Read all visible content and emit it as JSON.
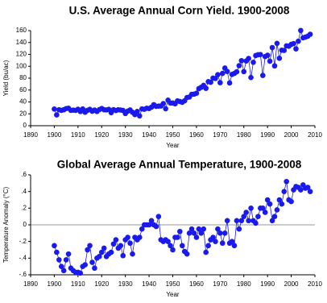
{
  "chart_data": [
    {
      "type": "line",
      "title": "U.S. Average Annual Corn Yield. 1900-2008",
      "x_label": "Year",
      "y_label": "Yield (bu/ac)",
      "color": "#1a1aee",
      "x": [
        1900,
        1901,
        1902,
        1903,
        1904,
        1905,
        1906,
        1907,
        1908,
        1909,
        1910,
        1911,
        1912,
        1913,
        1914,
        1915,
        1916,
        1917,
        1918,
        1919,
        1920,
        1921,
        1922,
        1923,
        1924,
        1925,
        1926,
        1927,
        1928,
        1929,
        1930,
        1931,
        1932,
        1933,
        1934,
        1935,
        1936,
        1937,
        1938,
        1939,
        1940,
        1941,
        1942,
        1943,
        1944,
        1945,
        1946,
        1947,
        1948,
        1949,
        1950,
        1951,
        1952,
        1953,
        1954,
        1955,
        1956,
        1957,
        1958,
        1959,
        1960,
        1961,
        1962,
        1963,
        1964,
        1965,
        1966,
        1967,
        1968,
        1969,
        1970,
        1971,
        1972,
        1973,
        1974,
        1975,
        1976,
        1977,
        1978,
        1979,
        1980,
        1981,
        1982,
        1983,
        1984,
        1985,
        1986,
        1987,
        1988,
        1989,
        1990,
        1991,
        1992,
        1993,
        1994,
        1995,
        1996,
        1997,
        1998,
        1999,
        2000,
        2001,
        2002,
        2003,
        2004,
        2005,
        2006,
        2007,
        2008
      ],
      "values": [
        28.1,
        18.2,
        26.8,
        25.9,
        26.8,
        28.8,
        29.4,
        25.9,
        26.2,
        25.9,
        27.7,
        23.9,
        28.2,
        22.7,
        25.8,
        27.5,
        24.4,
        26.3,
        24.0,
        27.1,
        29.0,
        26.9,
        26.6,
        27.5,
        22.0,
        27.0,
        25.5,
        26.9,
        26.4,
        25.7,
        20.5,
        24.5,
        26.5,
        22.6,
        18.7,
        24.0,
        16.5,
        28.2,
        27.7,
        29.4,
        28.9,
        31.2,
        35.4,
        32.6,
        33.0,
        33.1,
        37.2,
        28.6,
        43.0,
        38.2,
        38.2,
        36.9,
        41.8,
        40.7,
        39.4,
        42.0,
        47.4,
        48.3,
        52.8,
        53.1,
        54.7,
        62.4,
        64.7,
        67.9,
        62.9,
        74.1,
        73.1,
        80.1,
        79.5,
        85.9,
        72.4,
        88.1,
        97.0,
        91.3,
        71.9,
        86.4,
        88.0,
        90.8,
        101.0,
        109.5,
        91.0,
        108.9,
        113.2,
        81.1,
        106.7,
        118.0,
        119.4,
        119.8,
        84.6,
        116.3,
        118.5,
        108.6,
        131.5,
        100.7,
        138.6,
        113.5,
        127.1,
        126.7,
        134.4,
        133.8,
        136.9,
        138.2,
        129.3,
        142.2,
        160.3,
        147.9,
        149.1,
        150.7,
        153.9
      ],
      "xlim": [
        1890,
        2010
      ],
      "xticks": [
        1890,
        1900,
        1910,
        1920,
        1930,
        1940,
        1950,
        1960,
        1970,
        1980,
        1990,
        2000,
        2010
      ],
      "ylim": [
        0,
        160
      ],
      "yticks": [
        0,
        20,
        40,
        60,
        80,
        100,
        120,
        140,
        160
      ]
    },
    {
      "type": "line",
      "title": "Global Average Annual Temperature, 1900-2008",
      "x_label": "Year",
      "y_label": "Temperature Anomaly (°C)",
      "color": "#1a1aee",
      "zero_line": true,
      "x": [
        1900,
        1901,
        1902,
        1903,
        1904,
        1905,
        1906,
        1907,
        1908,
        1909,
        1910,
        1911,
        1912,
        1913,
        1914,
        1915,
        1916,
        1917,
        1918,
        1919,
        1920,
        1921,
        1922,
        1923,
        1924,
        1925,
        1926,
        1927,
        1928,
        1929,
        1930,
        1931,
        1932,
        1933,
        1934,
        1935,
        1936,
        1937,
        1938,
        1939,
        1940,
        1941,
        1942,
        1943,
        1944,
        1945,
        1946,
        1947,
        1948,
        1949,
        1950,
        1951,
        1952,
        1953,
        1954,
        1955,
        1956,
        1957,
        1958,
        1959,
        1960,
        1961,
        1962,
        1963,
        1964,
        1965,
        1966,
        1967,
        1968,
        1969,
        1970,
        1971,
        1972,
        1973,
        1974,
        1975,
        1976,
        1977,
        1978,
        1979,
        1980,
        1981,
        1982,
        1983,
        1984,
        1985,
        1986,
        1987,
        1988,
        1989,
        1990,
        1991,
        1992,
        1993,
        1994,
        1995,
        1996,
        1997,
        1998,
        1999,
        2000,
        2001,
        2002,
        2003,
        2004,
        2005,
        2006,
        2007,
        2008
      ],
      "values": [
        -0.25,
        -0.33,
        -0.42,
        -0.5,
        -0.55,
        -0.42,
        -0.35,
        -0.52,
        -0.55,
        -0.57,
        -0.57,
        -0.58,
        -0.5,
        -0.48,
        -0.3,
        -0.25,
        -0.45,
        -0.52,
        -0.4,
        -0.38,
        -0.33,
        -0.28,
        -0.38,
        -0.35,
        -0.33,
        -0.23,
        -0.18,
        -0.28,
        -0.25,
        -0.37,
        -0.18,
        -0.15,
        -0.22,
        -0.35,
        -0.15,
        -0.18,
        -0.15,
        -0.05,
        0.0,
        0.0,
        0.0,
        0.05,
        0.0,
        -0.02,
        0.1,
        -0.18,
        -0.2,
        -0.18,
        -0.2,
        -0.25,
        -0.3,
        -0.15,
        -0.15,
        -0.08,
        -0.25,
        -0.32,
        -0.35,
        -0.1,
        -0.05,
        -0.1,
        -0.15,
        -0.05,
        -0.1,
        -0.05,
        -0.33,
        -0.25,
        -0.18,
        -0.15,
        -0.2,
        -0.05,
        -0.1,
        -0.22,
        -0.1,
        0.05,
        -0.22,
        -0.2,
        -0.25,
        0.05,
        -0.05,
        0.05,
        0.1,
        0.15,
        0.05,
        0.2,
        0.05,
        0.02,
        0.1,
        0.2,
        0.2,
        0.15,
        0.3,
        0.25,
        0.05,
        0.1,
        0.18,
        0.3,
        0.25,
        0.4,
        0.52,
        0.3,
        0.28,
        0.42,
        0.46,
        0.45,
        0.42,
        0.48,
        0.44,
        0.45,
        0.4
      ],
      "xlim": [
        1890,
        2010
      ],
      "xticks": [
        1890,
        1900,
        1910,
        1920,
        1930,
        1940,
        1950,
        1960,
        1970,
        1980,
        1990,
        2000,
        2010
      ],
      "ylim": [
        -0.6,
        0.6
      ],
      "yticks": [
        {
          "value": 0.6,
          "label": ".6"
        },
        {
          "value": 0.4,
          "label": ".4"
        },
        {
          "value": 0.2,
          "label": ".2"
        },
        0,
        {
          "value": -0.2,
          "label": "-.2"
        },
        {
          "value": -0.4,
          "label": "-.4"
        },
        {
          "value": -0.6,
          "label": "-.6"
        }
      ]
    }
  ]
}
